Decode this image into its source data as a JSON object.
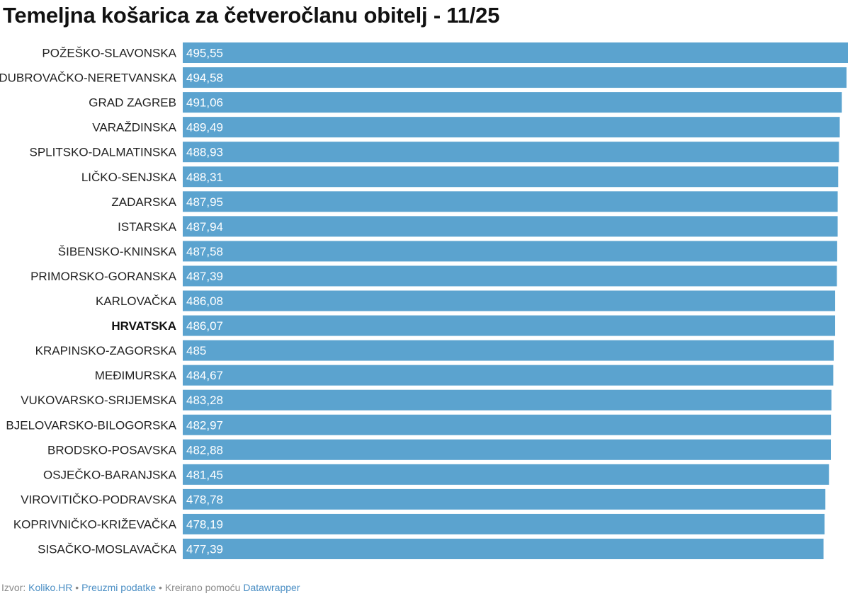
{
  "chart_data": {
    "type": "bar",
    "orientation": "horizontal",
    "title": "Temeljna košarica za četveročlanu obitelj - 11/25",
    "categories": [
      "POŽEŠKO-SLAVONSKA",
      "DUBROVAČKO-NERETVANSKA",
      "GRAD ZAGREB",
      "VARAŽDINSKA",
      "SPLITSKO-DALMATINSKA",
      "LIČKO-SENJSKA",
      "ZADARSKA",
      "ISTARSKA",
      "ŠIBENSKO-KNINSKA",
      "PRIMORSKO-GORANSKA",
      "KARLOVAČKA",
      "HRVATSKA",
      "KRAPINSKO-ZAGORSKA",
      "MEĐIMURSKA",
      "VUKOVARSKO-SRIJEMSKA",
      "BJELOVARSKO-BILOGORSKA",
      "BRODSKO-POSAVSKA",
      "OSJEČKO-BARANJSKA",
      "VIROVITIČKO-PODRAVSKA",
      "KOPRIVNIČKO-KRIŽEVAČKA",
      "SISAČKO-MOSLAVAČKA"
    ],
    "values": [
      495.55,
      494.58,
      491.06,
      489.49,
      488.93,
      488.31,
      487.95,
      487.94,
      487.58,
      487.39,
      486.08,
      486.07,
      485,
      484.67,
      483.28,
      482.97,
      482.88,
      481.45,
      478.78,
      478.19,
      477.39
    ],
    "value_labels": [
      "495,55",
      "494,58",
      "491,06",
      "489,49",
      "488,93",
      "488,31",
      "487,95",
      "487,94",
      "487,58",
      "487,39",
      "486,08",
      "486,07",
      "485",
      "484,67",
      "483,28",
      "482,97",
      "482,88",
      "481,45",
      "478,78",
      "478,19",
      "477,39"
    ],
    "highlighted": [
      "HRVATSKA"
    ],
    "xlim": [
      0,
      495.55
    ],
    "bar_color": "#5ba3cf",
    "grid": false,
    "legend": "none"
  },
  "footer": {
    "source_prefix": "Izvor:",
    "source_link": "Koliko.HR",
    "separator": "•",
    "download_link": "Preuzmi podatke",
    "created_text": "Kreirano pomoću",
    "tool_link": "Datawrapper"
  }
}
